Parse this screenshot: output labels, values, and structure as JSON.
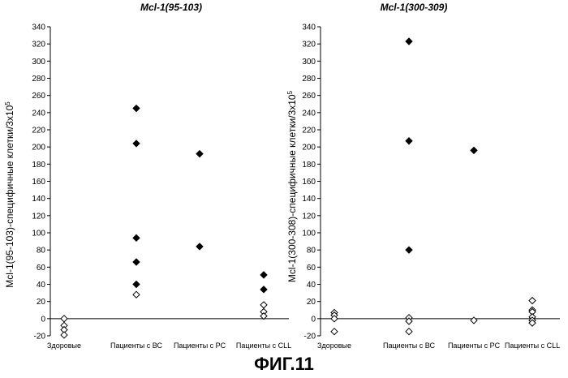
{
  "figure_caption": "ФИГ.11",
  "chart_data": [
    {
      "type": "scatter",
      "title": "Mcl-1(95-103)",
      "xlabel": "",
      "ylabel": "Mcl-1(95-103)-специфичные клетки/3x10",
      "ylabel_sup": "5",
      "ylim": [
        -20,
        340
      ],
      "yticks": [
        -20,
        0,
        20,
        40,
        60,
        80,
        100,
        120,
        140,
        160,
        180,
        200,
        220,
        240,
        260,
        280,
        300,
        320,
        340
      ],
      "categories": [
        "Здоровые",
        "Пациенты с ВС",
        "Пациенты с РС",
        "Пациенты с CLL"
      ],
      "points": [
        {
          "category": "Здоровые",
          "y": 0,
          "marker": "open-diamond"
        },
        {
          "category": "Здоровые",
          "y": -8,
          "marker": "open-diamond"
        },
        {
          "category": "Здоровые",
          "y": -13,
          "marker": "open-diamond"
        },
        {
          "category": "Здоровые",
          "y": -19,
          "marker": "open-diamond"
        },
        {
          "category": "Пациенты с ВС",
          "y": 245,
          "marker": "filled-diamond"
        },
        {
          "category": "Пациенты с ВС",
          "y": 204,
          "marker": "filled-diamond"
        },
        {
          "category": "Пациенты с ВС",
          "y": 94,
          "marker": "filled-diamond"
        },
        {
          "category": "Пациенты с ВС",
          "y": 66,
          "marker": "filled-diamond"
        },
        {
          "category": "Пациенты с ВС",
          "y": 40,
          "marker": "filled-diamond"
        },
        {
          "category": "Пациенты с ВС",
          "y": 28,
          "marker": "open-diamond"
        },
        {
          "category": "Пациенты с РС",
          "y": 192,
          "marker": "filled-diamond"
        },
        {
          "category": "Пациенты с РС",
          "y": 84,
          "marker": "filled-diamond"
        },
        {
          "category": "Пациенты с CLL",
          "y": 51,
          "marker": "filled-diamond"
        },
        {
          "category": "Пациенты с CLL",
          "y": 34,
          "marker": "filled-diamond"
        },
        {
          "category": "Пациенты с CLL",
          "y": 16,
          "marker": "open-diamond"
        },
        {
          "category": "Пациенты с CLL",
          "y": 8,
          "marker": "open-diamond"
        },
        {
          "category": "Пациенты с CLL",
          "y": 3,
          "marker": "open-diamond"
        }
      ],
      "grid": false
    },
    {
      "type": "scatter",
      "title": "Mcl-1(300-309)",
      "xlabel": "",
      "ylabel": "Mcl-1(300-308)-специфичные клетки/3x10",
      "ylabel_sup": "5",
      "ylim": [
        -20,
        340
      ],
      "yticks": [
        -20,
        0,
        20,
        40,
        60,
        80,
        100,
        120,
        140,
        160,
        180,
        200,
        220,
        240,
        260,
        280,
        300,
        320,
        340
      ],
      "categories": [
        "Здоровые",
        "Пациенты с ВС",
        "Пациенты с РС",
        "Пациенты с CLL"
      ],
      "points": [
        {
          "category": "Здоровые",
          "y": 7,
          "marker": "open-diamond"
        },
        {
          "category": "Здоровые",
          "y": 4,
          "marker": "open-diamond"
        },
        {
          "category": "Здоровые",
          "y": 0,
          "marker": "open-diamond"
        },
        {
          "category": "Здоровые",
          "y": -15,
          "marker": "open-diamond"
        },
        {
          "category": "Пациенты с ВС",
          "y": 323,
          "marker": "filled-diamond"
        },
        {
          "category": "Пациенты с ВС",
          "y": 207,
          "marker": "filled-diamond"
        },
        {
          "category": "Пациенты с ВС",
          "y": 80,
          "marker": "filled-diamond"
        },
        {
          "category": "Пациенты с ВС",
          "y": 1,
          "marker": "open-diamond"
        },
        {
          "category": "Пациенты с ВС",
          "y": -3,
          "marker": "open-diamond"
        },
        {
          "category": "Пациенты с ВС",
          "y": -15,
          "marker": "open-diamond"
        },
        {
          "category": "Пациенты с РС",
          "y": 196,
          "marker": "filled-diamond"
        },
        {
          "category": "Пациенты с РС",
          "y": -2,
          "marker": "open-diamond"
        },
        {
          "category": "Пациенты с CLL",
          "y": 21,
          "marker": "open-diamond"
        },
        {
          "category": "Пациенты с CLL",
          "y": 10,
          "marker": "open-diamond"
        },
        {
          "category": "Пациенты с CLL",
          "y": 8,
          "marker": "open-diamond"
        },
        {
          "category": "Пациенты с CLL",
          "y": 2,
          "marker": "open-diamond"
        },
        {
          "category": "Пациенты с CLL",
          "y": -2,
          "marker": "open-diamond"
        },
        {
          "category": "Пациенты с CLL",
          "y": -5,
          "marker": "open-diamond"
        }
      ],
      "grid": false
    }
  ]
}
